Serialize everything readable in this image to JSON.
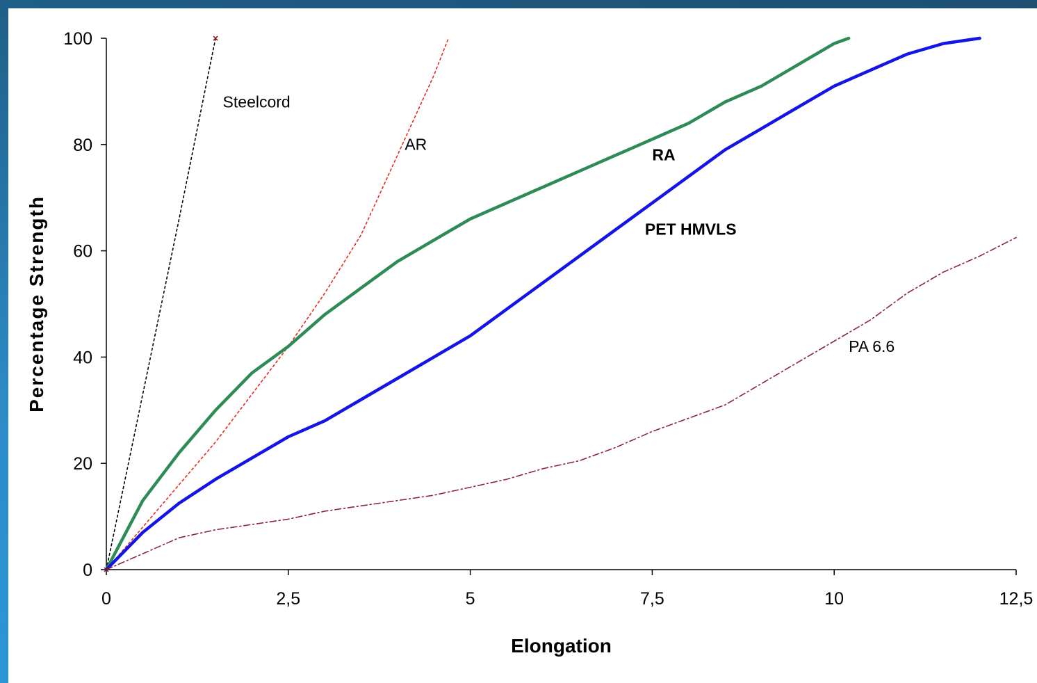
{
  "chart_data": {
    "type": "line",
    "xlabel": "Elongation",
    "ylabel": "Percentage Strength",
    "xlim": [
      0,
      12.5
    ],
    "ylim": [
      0,
      100
    ],
    "x_ticks": [
      "0",
      "2,5",
      "5",
      "7,5",
      "10",
      "12,5"
    ],
    "y_ticks": [
      "0",
      "20",
      "40",
      "60",
      "80",
      "100"
    ],
    "x_tick_values": [
      0,
      2.5,
      5,
      7.5,
      10,
      12.5
    ],
    "y_tick_values": [
      0,
      20,
      40,
      60,
      80,
      100
    ],
    "grid": false,
    "legend": "none",
    "series": [
      {
        "name": "Steelcord",
        "color": "#000000",
        "style": "dotted",
        "points": [
          [
            0,
            0
          ],
          [
            0.5,
            33
          ],
          [
            1.0,
            66
          ],
          [
            1.5,
            100
          ]
        ]
      },
      {
        "name": "AR",
        "color": "#e8281e",
        "style": "dotted",
        "points": [
          [
            0,
            0
          ],
          [
            0.5,
            8
          ],
          [
            1.0,
            16
          ],
          [
            1.5,
            24
          ],
          [
            2.0,
            33
          ],
          [
            2.5,
            42
          ],
          [
            3.0,
            52
          ],
          [
            3.5,
            63
          ],
          [
            4.0,
            78
          ],
          [
            4.5,
            93
          ],
          [
            4.7,
            100
          ]
        ]
      },
      {
        "name": "RA",
        "color": "#2e8b57",
        "style": "solid",
        "points": [
          [
            0,
            0
          ],
          [
            0.5,
            13
          ],
          [
            1.0,
            22
          ],
          [
            1.5,
            30
          ],
          [
            2.0,
            37
          ],
          [
            2.5,
            42
          ],
          [
            3.0,
            48
          ],
          [
            3.5,
            53
          ],
          [
            4.0,
            58
          ],
          [
            4.5,
            62
          ],
          [
            5.0,
            66
          ],
          [
            5.5,
            69
          ],
          [
            6.0,
            72
          ],
          [
            6.5,
            75
          ],
          [
            7.0,
            78
          ],
          [
            7.5,
            81
          ],
          [
            8.0,
            84
          ],
          [
            8.5,
            88
          ],
          [
            9.0,
            91
          ],
          [
            9.5,
            95
          ],
          [
            10.0,
            99
          ],
          [
            10.2,
            100
          ]
        ]
      },
      {
        "name": "PET HMVLS",
        "color": "#1414e6",
        "style": "solid",
        "points": [
          [
            0,
            0
          ],
          [
            0.5,
            7
          ],
          [
            1.0,
            12.5
          ],
          [
            1.5,
            17
          ],
          [
            2.0,
            21
          ],
          [
            2.5,
            25
          ],
          [
            3.0,
            28
          ],
          [
            3.5,
            32
          ],
          [
            4.0,
            36
          ],
          [
            4.5,
            40
          ],
          [
            5.0,
            44
          ],
          [
            5.5,
            49
          ],
          [
            6.0,
            54
          ],
          [
            6.5,
            59
          ],
          [
            7.0,
            64
          ],
          [
            7.5,
            69
          ],
          [
            8.0,
            74
          ],
          [
            8.5,
            79
          ],
          [
            9.0,
            83
          ],
          [
            9.5,
            87
          ],
          [
            10.0,
            91
          ],
          [
            10.5,
            94
          ],
          [
            11.0,
            97
          ],
          [
            11.5,
            99
          ],
          [
            12.0,
            100
          ]
        ]
      },
      {
        "name": "PA 6.6",
        "color": "#8a2540",
        "style": "dashdot",
        "points": [
          [
            0,
            0
          ],
          [
            0.5,
            3
          ],
          [
            1.0,
            6
          ],
          [
            1.5,
            7.5
          ],
          [
            2.0,
            8.5
          ],
          [
            2.5,
            9.5
          ],
          [
            3.0,
            11
          ],
          [
            3.5,
            12
          ],
          [
            4.0,
            13
          ],
          [
            4.5,
            14
          ],
          [
            5.0,
            15.5
          ],
          [
            5.5,
            17
          ],
          [
            6.0,
            19
          ],
          [
            6.5,
            20.5
          ],
          [
            7.0,
            23
          ],
          [
            7.5,
            26
          ],
          [
            8.0,
            28.5
          ],
          [
            8.5,
            31
          ],
          [
            9.0,
            35
          ],
          [
            9.5,
            39
          ],
          [
            10.0,
            43
          ],
          [
            10.5,
            47
          ],
          [
            11.0,
            52
          ],
          [
            11.5,
            56
          ],
          [
            12.0,
            59
          ],
          [
            12.5,
            62.5
          ]
        ]
      }
    ],
    "annotations": [
      {
        "text": "Steelcord",
        "x": 1.6,
        "y": 87,
        "bold": false
      },
      {
        "text": "AR",
        "x": 4.1,
        "y": 79,
        "bold": false
      },
      {
        "text": "RA",
        "x": 7.5,
        "y": 77,
        "bold": true
      },
      {
        "text": "PET HMVLS",
        "x": 7.4,
        "y": 63,
        "bold": true
      },
      {
        "text": "PA 6.6",
        "x": 10.2,
        "y": 41,
        "bold": false
      }
    ]
  }
}
